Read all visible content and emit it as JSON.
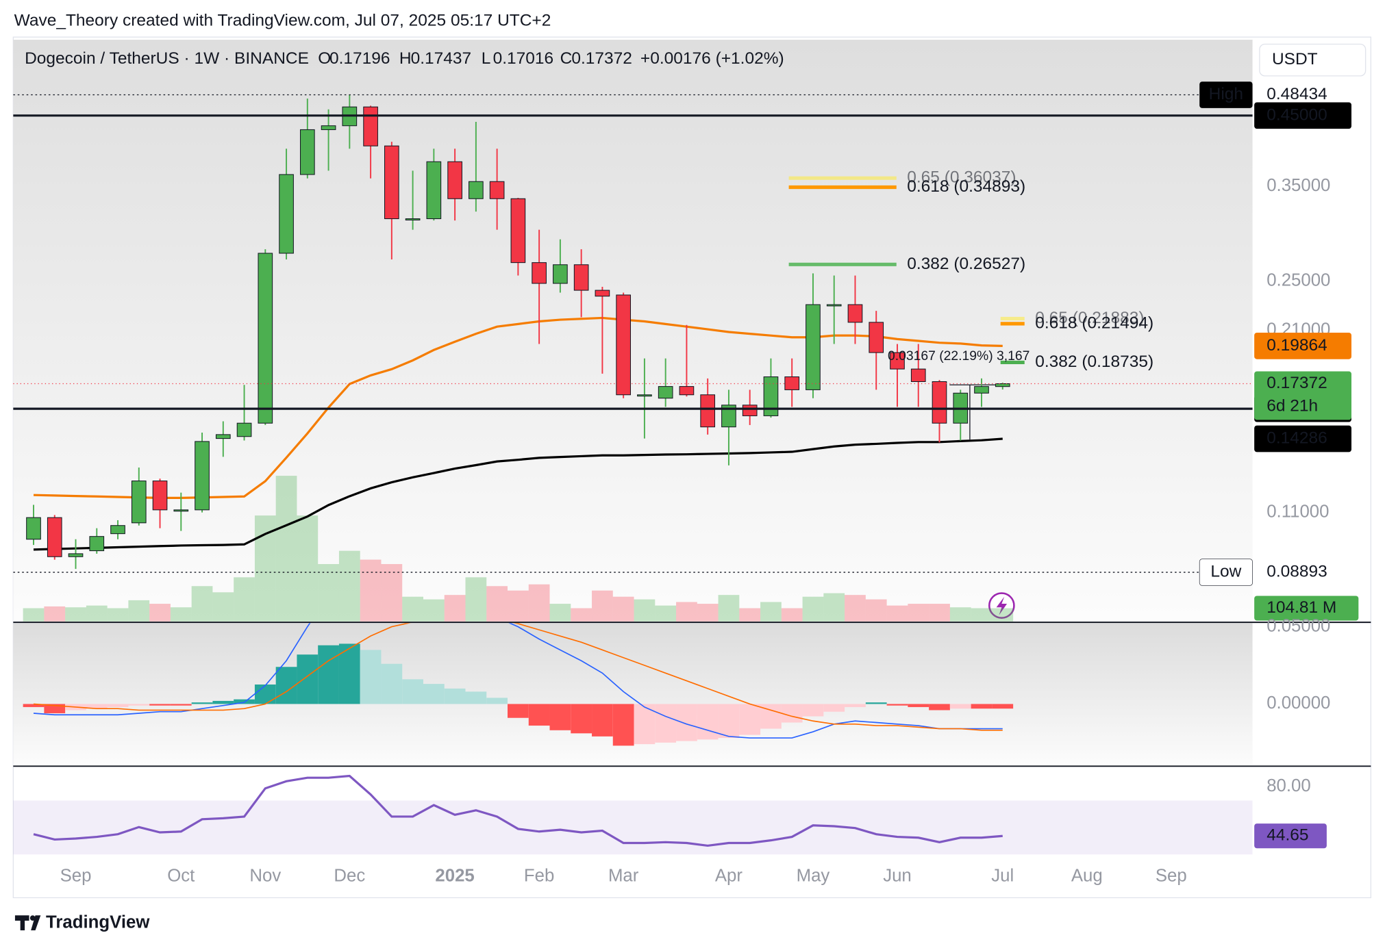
{
  "header": {
    "credit": "Wave_Theory created with TradingView.com, Jul 07, 2025 05:17 UTC+2",
    "currency": "USDT",
    "brand": "TradingView"
  },
  "chart_data": {
    "type": "candlestick",
    "title": "Dogecoin / TetherUS · 1W · BINANCE",
    "legend": {
      "keys": [
        "O",
        "H",
        "L",
        "C"
      ],
      "change": "+0.00176 (+1.02%)"
    },
    "log_scale": true,
    "categories": [
      null,
      null,
      "Sep",
      null,
      null,
      null,
      null,
      "Oct",
      null,
      null,
      null,
      "Nov",
      null,
      null,
      null,
      "Dec",
      null,
      null,
      null,
      null,
      "2025",
      null,
      null,
      null,
      "Feb",
      null,
      null,
      null,
      "Mar",
      null,
      null,
      null,
      null,
      "Apr",
      null,
      null,
      null,
      "May",
      null,
      null,
      null,
      "Jun",
      null,
      null,
      null,
      null,
      "Jul",
      null,
      null,
      null,
      "Aug",
      null,
      null,
      null,
      "Sep"
    ],
    "xtick_bold": [
      20
    ],
    "open": [
      0.1,
      0.108,
      0.094,
      0.096,
      0.102,
      0.106,
      0.123,
      0.111,
      0.111,
      0.143,
      0.144,
      0.151,
      0.276,
      0.365,
      0.428,
      0.434,
      0.464,
      0.404,
      0.312,
      0.312,
      0.382,
      0.335,
      0.356,
      0.335,
      0.267,
      0.248,
      0.265,
      0.242,
      0.238,
      0.167,
      0.165,
      0.172,
      0.167,
      0.149,
      0.161,
      0.155,
      0.178,
      0.17,
      0.23,
      0.23,
      0.216,
      0.194,
      0.183,
      0.175,
      0.151,
      0.168,
      0.17196,
      null,
      null,
      null,
      null,
      null,
      null,
      null,
      null
    ],
    "high": [
      0.113,
      0.109,
      0.1,
      0.104,
      0.107,
      0.129,
      0.124,
      0.118,
      0.146,
      0.152,
      0.173,
      0.28,
      0.4,
      0.478,
      0.46,
      0.484,
      0.466,
      0.41,
      0.37,
      0.4,
      0.4,
      0.44,
      0.4,
      0.336,
      0.3,
      0.29,
      0.28,
      0.245,
      0.24,
      0.19,
      0.19,
      0.214,
      0.177,
      0.17,
      0.17,
      0.19,
      0.19,
      0.257,
      0.255,
      0.255,
      0.225,
      0.2,
      0.2,
      0.176,
      0.17,
      0.177,
      0.17437,
      null,
      null,
      null,
      null,
      null,
      null,
      null,
      null
    ],
    "low": [
      0.098,
      0.093,
      0.09,
      0.095,
      0.1,
      0.105,
      0.104,
      0.103,
      0.11,
      0.134,
      0.142,
      0.15,
      0.27,
      0.36,
      0.37,
      0.4,
      0.36,
      0.27,
      0.3,
      0.31,
      0.31,
      0.32,
      0.3,
      0.255,
      0.2,
      0.24,
      0.22,
      0.18,
      0.165,
      0.143,
      0.16,
      0.166,
      0.145,
      0.13,
      0.15,
      0.154,
      0.16,
      0.165,
      0.2,
      0.2,
      0.17,
      0.16,
      0.16,
      0.141,
      0.142,
      0.16,
      0.17016,
      null,
      null,
      null,
      null,
      null,
      null,
      null,
      null
    ],
    "close": [
      0.108,
      0.094,
      0.095,
      0.101,
      0.105,
      0.123,
      0.111,
      0.111,
      0.1415,
      0.145,
      0.151,
      0.276,
      0.365,
      0.428,
      0.434,
      0.464,
      0.404,
      0.312,
      0.312,
      0.382,
      0.335,
      0.356,
      0.335,
      0.267,
      0.248,
      0.265,
      0.242,
      0.237,
      0.167,
      0.167,
      0.172,
      0.167,
      0.149,
      0.161,
      0.155,
      0.178,
      0.17,
      0.23,
      0.23,
      0.216,
      0.194,
      0.183,
      0.175,
      0.151,
      0.168,
      0.172,
      0.17372,
      null,
      null,
      null,
      null,
      null,
      null,
      null,
      null
    ],
    "up_color": "#4caf50",
    "down_color": "#f23645",
    "ylim": [
      0.0747,
      0.589
    ],
    "yticks": [
      {
        "value": 0.35,
        "label": "0.35000"
      },
      {
        "value": 0.25,
        "label": "0.25000"
      },
      {
        "value": 0.21,
        "label": "0.21000"
      },
      {
        "value": 0.11,
        "label": "0.11000"
      }
    ],
    "levels": [
      {
        "name": "High",
        "name_bg": "#000000",
        "value": 0.48434,
        "style": "dotted"
      },
      {
        "value": 0.45,
        "value_label": "0.45000",
        "style": "solid"
      },
      {
        "value": 0.15893,
        "style": "solid"
      },
      {
        "name": "Low",
        "name_bg": "#ffffff",
        "value": 0.08893,
        "style": "dotted"
      }
    ],
    "last_price": {
      "countdown": "6d 21h",
      "color": "#4caf50",
      "line_color": "#f23645"
    },
    "moving_averages": [
      {
        "color": "#f57c00",
        "values": [
          0.117,
          0.1168,
          0.1166,
          0.1164,
          0.1162,
          0.116,
          0.1158,
          0.1158,
          0.116,
          0.1162,
          0.1164,
          0.1229,
          0.1336,
          0.1456,
          0.1596,
          0.1735,
          0.1789,
          0.1829,
          0.1887,
          0.1958,
          0.2016,
          0.2074,
          0.2127,
          0.2147,
          0.2167,
          0.218,
          0.2187,
          0.2194,
          0.218,
          0.2167,
          0.2147,
          0.2127,
          0.2107,
          0.2087,
          0.2074,
          0.2061,
          0.2048,
          0.2048,
          0.2061,
          0.2061,
          0.2055,
          0.2035,
          0.2022,
          0.2009,
          0.2003,
          0.199,
          0.19864,
          null,
          null,
          null,
          null,
          null,
          null,
          null,
          null
        ]
      },
      {
        "color": "#000000",
        "values": [
          0.0964,
          0.0966,
          0.0968,
          0.097,
          0.0972,
          0.0974,
          0.0976,
          0.0978,
          0.0979,
          0.098,
          0.0982,
          0.1019,
          0.1051,
          0.1084,
          0.1129,
          0.1165,
          0.1198,
          0.1224,
          0.1246,
          0.1265,
          0.1285,
          0.1301,
          0.1318,
          0.1326,
          0.1335,
          0.1339,
          0.1343,
          0.1347,
          0.1347,
          0.1349,
          0.1351,
          0.1352,
          0.1354,
          0.1356,
          0.1358,
          0.1361,
          0.1364,
          0.1377,
          0.139,
          0.1399,
          0.1403,
          0.1408,
          0.1412,
          0.1412,
          0.1417,
          0.1421,
          0.14286,
          null,
          null,
          null,
          null,
          null,
          null,
          null,
          null
        ]
      }
    ],
    "fib_levels": [
      {
        "label": "0.65 (0.36037)",
        "value": 0.36037,
        "color": "#ffeb3b",
        "faded": true,
        "from": 35.85,
        "to": 40.96
      },
      {
        "label": "0.618 (0.34893)",
        "value": 0.34893,
        "color": "#ff9800",
        "from": 35.85,
        "to": 40.96
      },
      {
        "label": "0.382 (0.26527)",
        "value": 0.26527,
        "color": "#66bb6a",
        "from": 35.85,
        "to": 40.96
      },
      {
        "label": "0.65 (0.21883)",
        "value": 0.21883,
        "color": "#ffeb3b",
        "faded": true,
        "from": 45.9,
        "to": 47.04
      },
      {
        "label": "0.618 (0.21494)",
        "value": 0.21494,
        "color": "#ff9800",
        "from": 45.9,
        "to": 47.04
      },
      {
        "label": "0.382 (0.18735)",
        "value": 0.18735,
        "color": "#4caf50",
        "from": 45.9,
        "to": 47.04
      }
    ],
    "measure": "0.03167 (22.19%) 3,167",
    "volume": {
      "ylim": [
        0,
        1400
      ],
      "last_label": "104.81 M",
      "color": "#4caf50",
      "values": [
        105,
        119,
        112,
        126,
        105,
        168,
        140,
        112,
        280,
        231,
        350,
        840,
        1155,
        840,
        455,
        560,
        490,
        455,
        196,
        175,
        210,
        350,
        280,
        245,
        294,
        140,
        105,
        245,
        196,
        175,
        126,
        154,
        140,
        210,
        105,
        154,
        105,
        196,
        224,
        210,
        175,
        126,
        140,
        140,
        112,
        105,
        104.81,
        null,
        null,
        null,
        null,
        null,
        null,
        null,
        null
      ]
    },
    "macd": {
      "ylim": [
        -0.0397,
        0.0523
      ],
      "yticks": [
        {
          "value": 0.05,
          "label": "0.05000"
        },
        {
          "value": 0,
          "label": "0.00000"
        }
      ],
      "colors": {
        "up_rising": "#26a69a",
        "up_falling": "#b2dfdb",
        "down_falling": "#ff5252",
        "down_rising": "#ffcdd2",
        "macd": "#2962ff",
        "signal": "#ff6d00"
      },
      "histogram": [
        -0.002,
        -0.006,
        -0.004,
        -0.003,
        -0.002,
        -0.001,
        -0.001,
        -0.001,
        0.001,
        0.002,
        0.003,
        0.0126,
        0.024,
        0.032,
        0.038,
        0.039,
        0.035,
        0.026,
        0.016,
        0.013,
        0.01,
        0.008,
        0.004,
        -0.009,
        -0.014,
        -0.017,
        -0.019,
        -0.021,
        -0.027,
        -0.026,
        -0.025,
        -0.024,
        -0.023,
        -0.022,
        -0.02,
        -0.016,
        -0.012,
        -0.008,
        -0.005,
        -0.002,
        0.001,
        -0.001,
        -0.002,
        -0.004,
        -0.003,
        -0.003,
        -0.003,
        null,
        null,
        null,
        null,
        null,
        null,
        null,
        null
      ],
      "macd": [
        -0.006,
        -0.007,
        -0.007,
        -0.007,
        -0.007,
        -0.006,
        -0.005,
        -0.005,
        -0.003,
        -0.001,
        0.001,
        0.012,
        0.028,
        0.05,
        0.07,
        0.075,
        0.075,
        0.072,
        0.068,
        0.065,
        0.062,
        0.06,
        0.056,
        0.05,
        0.042,
        0.035,
        0.028,
        0.02,
        0.008,
        -0.002,
        -0.008,
        -0.013,
        -0.017,
        -0.021,
        -0.022,
        -0.022,
        -0.022,
        -0.018,
        -0.013,
        -0.011,
        -0.012,
        -0.013,
        -0.014,
        -0.016,
        -0.016,
        -0.016,
        -0.016,
        null,
        null,
        null,
        null,
        null,
        null,
        null,
        null
      ],
      "signal": [
        0.0,
        -0.001,
        -0.002,
        -0.003,
        -0.003,
        -0.004,
        -0.004,
        -0.004,
        -0.004,
        -0.004,
        -0.003,
        0.0,
        0.008,
        0.018,
        0.028,
        0.036,
        0.044,
        0.05,
        0.053,
        0.055,
        0.056,
        0.056,
        0.055,
        0.052,
        0.048,
        0.044,
        0.04,
        0.035,
        0.03,
        0.025,
        0.02,
        0.015,
        0.01,
        0.005,
        0.0,
        -0.004,
        -0.008,
        -0.011,
        -0.013,
        -0.013,
        -0.014,
        -0.014,
        -0.015,
        -0.016,
        -0.016,
        -0.017,
        -0.017,
        null,
        null,
        null,
        null,
        null,
        null,
        null,
        null
      ]
    },
    "rsi": {
      "ylim": [
        31.4,
        93.3
      ],
      "band": [
        30,
        70
      ],
      "yticks": [
        {
          "value": 80,
          "label": "80.00"
        }
      ],
      "color": "#7e57c2",
      "values": [
        45.9,
        42.1,
        42.8,
        44.0,
        45.9,
        51.0,
        47.2,
        47.8,
        56.6,
        57.3,
        58.5,
        78.7,
        83.8,
        86.3,
        86.3,
        87.6,
        74.3,
        58.5,
        58.5,
        66.7,
        59.8,
        63.0,
        58.5,
        49.7,
        47.8,
        49.1,
        47.2,
        48.4,
        39.6,
        39.6,
        40.2,
        39.6,
        37.7,
        39.6,
        39.6,
        41.5,
        44.0,
        52.2,
        51.6,
        50.3,
        45.9,
        44.0,
        43.4,
        40.2,
        43.4,
        43.4,
        44.65,
        null,
        null,
        null,
        null,
        null,
        null,
        null,
        null
      ]
    }
  }
}
